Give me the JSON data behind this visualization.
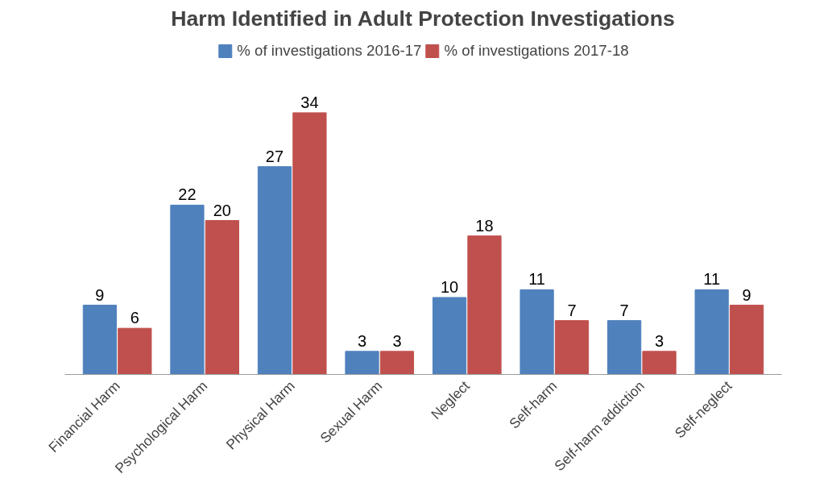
{
  "chart_data": {
    "type": "bar",
    "title": "Harm Identified in Adult Protection Investigations",
    "categories": [
      "Financial Harm",
      "Psychological Harm",
      "Physical Harm",
      "Sexual Harm",
      "Neglect",
      "Self-harm",
      "Self-harm addiction",
      "Self-neglect"
    ],
    "series": [
      {
        "name": "% of investigations 2016-17",
        "color": "#4f81bd",
        "values": [
          9,
          22,
          27,
          3,
          10,
          11,
          7,
          11
        ]
      },
      {
        "name": "% of investigations 2017-18",
        "color": "#c0504d",
        "values": [
          6,
          20,
          34,
          3,
          18,
          7,
          3,
          9
        ]
      }
    ],
    "data_labels": true,
    "legend": "top",
    "grid": false
  }
}
